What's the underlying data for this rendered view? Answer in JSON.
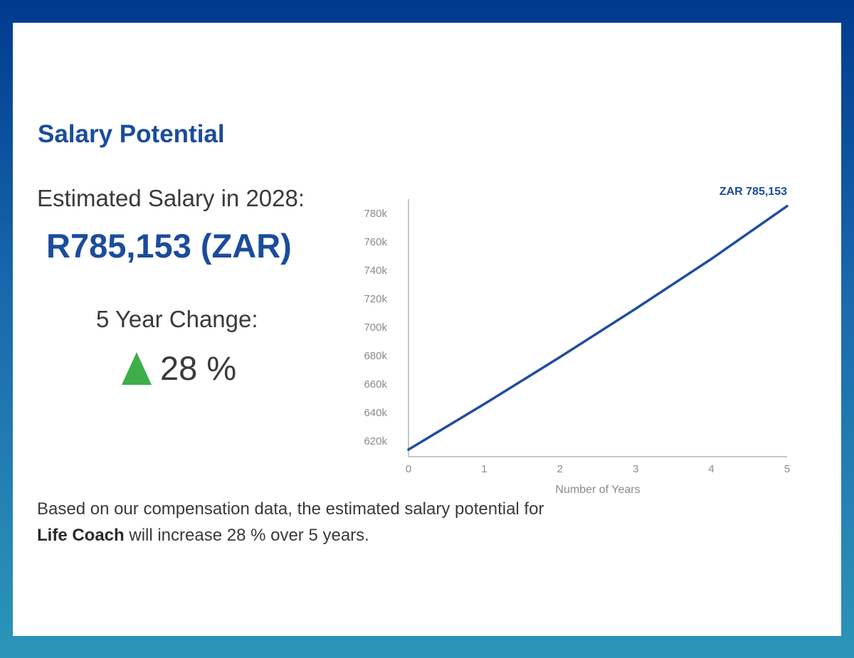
{
  "section": {
    "title": "Salary Potential",
    "estimated_label": "Estimated Salary in 2028:",
    "estimated_value": "R785,153 (ZAR)",
    "change_label": "5 Year Change:",
    "change_value": "28 %",
    "change_icon": "up-triangle-icon",
    "description": {
      "before": "Based on our compensation data, the estimated salary potential for ",
      "job": "Life Coach",
      "after": " will increase 28 % over 5 years."
    }
  },
  "colors": {
    "brand_blue": "#1b4c9c",
    "line_color": "#1f4e9e",
    "up_green": "#3fae4a"
  },
  "chart_data": {
    "type": "line",
    "title": "",
    "xlabel": "Number of Years",
    "ylabel": "",
    "x": [
      0,
      1,
      2,
      3,
      4,
      5
    ],
    "x_ticks": [
      "0",
      "1",
      "2",
      "3",
      "4",
      "5"
    ],
    "y_ticks": [
      "620k",
      "640k",
      "660k",
      "680k",
      "700k",
      "720k",
      "740k",
      "760k",
      "780k"
    ],
    "y_tick_values": [
      620000,
      640000,
      660000,
      680000,
      700000,
      720000,
      740000,
      760000,
      780000
    ],
    "xlim": [
      0,
      5
    ],
    "ylim": [
      609000,
      790000
    ],
    "series": [
      {
        "values": [
          614000,
          646000,
          679000,
          713000,
          748000,
          785153
        ]
      }
    ],
    "end_label": "ZAR 785,153",
    "grid": false
  }
}
